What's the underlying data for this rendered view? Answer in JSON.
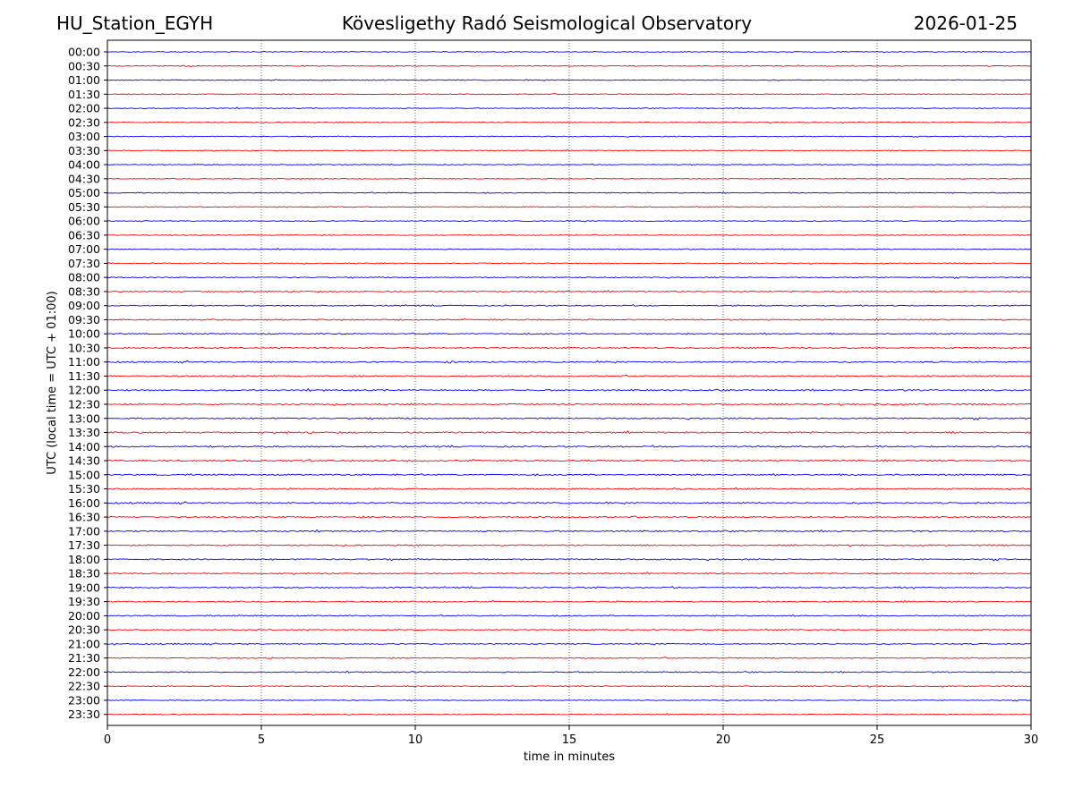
{
  "header": {
    "station": "HU_Station_EGYH",
    "title": "Kövesligethy Radó Seismological Observatory",
    "date": "2026-01-25"
  },
  "chart_data": {
    "type": "line",
    "title": "Kövesligethy Radó Seismological Observatory",
    "xlabel": "time in minutes",
    "ylabel": "UTC (local time = UTC + 01:00)",
    "xlim": [
      0,
      30
    ],
    "xticks": [
      "0",
      "5",
      "10",
      "15",
      "20",
      "25",
      "30"
    ],
    "grid": "vertical dotted lines at 5-minute ticks",
    "colors": [
      "#0000ff",
      "#ff0000"
    ],
    "rows": [
      "00:00",
      "00:30",
      "01:00",
      "01:30",
      "02:00",
      "02:30",
      "03:00",
      "03:30",
      "04:00",
      "04:30",
      "05:00",
      "05:30",
      "06:00",
      "06:30",
      "07:00",
      "07:30",
      "08:00",
      "08:30",
      "09:00",
      "09:30",
      "10:00",
      "10:30",
      "11:00",
      "11:30",
      "12:00",
      "12:30",
      "13:00",
      "13:30",
      "14:00",
      "14:30",
      "15:00",
      "15:30",
      "16:00",
      "16:30",
      "17:00",
      "17:30",
      "18:00",
      "18:30",
      "19:00",
      "19:30",
      "20:00",
      "20:30",
      "21:00",
      "21:30",
      "22:00",
      "22:30",
      "23:00",
      "23:30"
    ],
    "noise_level": [
      1.0,
      1.0,
      1.0,
      1.0,
      1.0,
      1.0,
      1.0,
      1.0,
      1.0,
      1.0,
      1.1,
      1.0,
      1.0,
      1.0,
      1.0,
      1.1,
      1.2,
      1.3,
      1.3,
      1.4,
      1.4,
      1.4,
      1.5,
      1.5,
      1.6,
      1.6,
      1.6,
      1.7,
      1.7,
      1.7,
      1.6,
      1.6,
      1.6,
      1.6,
      1.5,
      1.5,
      1.5,
      1.4,
      1.5,
      1.4,
      1.3,
      1.3,
      1.3,
      1.2,
      1.2,
      1.1,
      1.0,
      1.0
    ],
    "events": [
      {
        "row": "11:00",
        "minute": 11.1,
        "amplitude": 5
      },
      {
        "row": "14:30",
        "minute": 6.55,
        "amplitude": 6
      },
      {
        "row": "19:00",
        "minute": 26.2,
        "amplitude": 3.5
      },
      {
        "row": "22:00",
        "minute": 10.0,
        "amplitude": 3
      },
      {
        "row": "12:30",
        "minute": 25.0,
        "amplitude": 3
      },
      {
        "row": "15:30",
        "minute": 18.5,
        "amplitude": 2.5
      }
    ]
  }
}
